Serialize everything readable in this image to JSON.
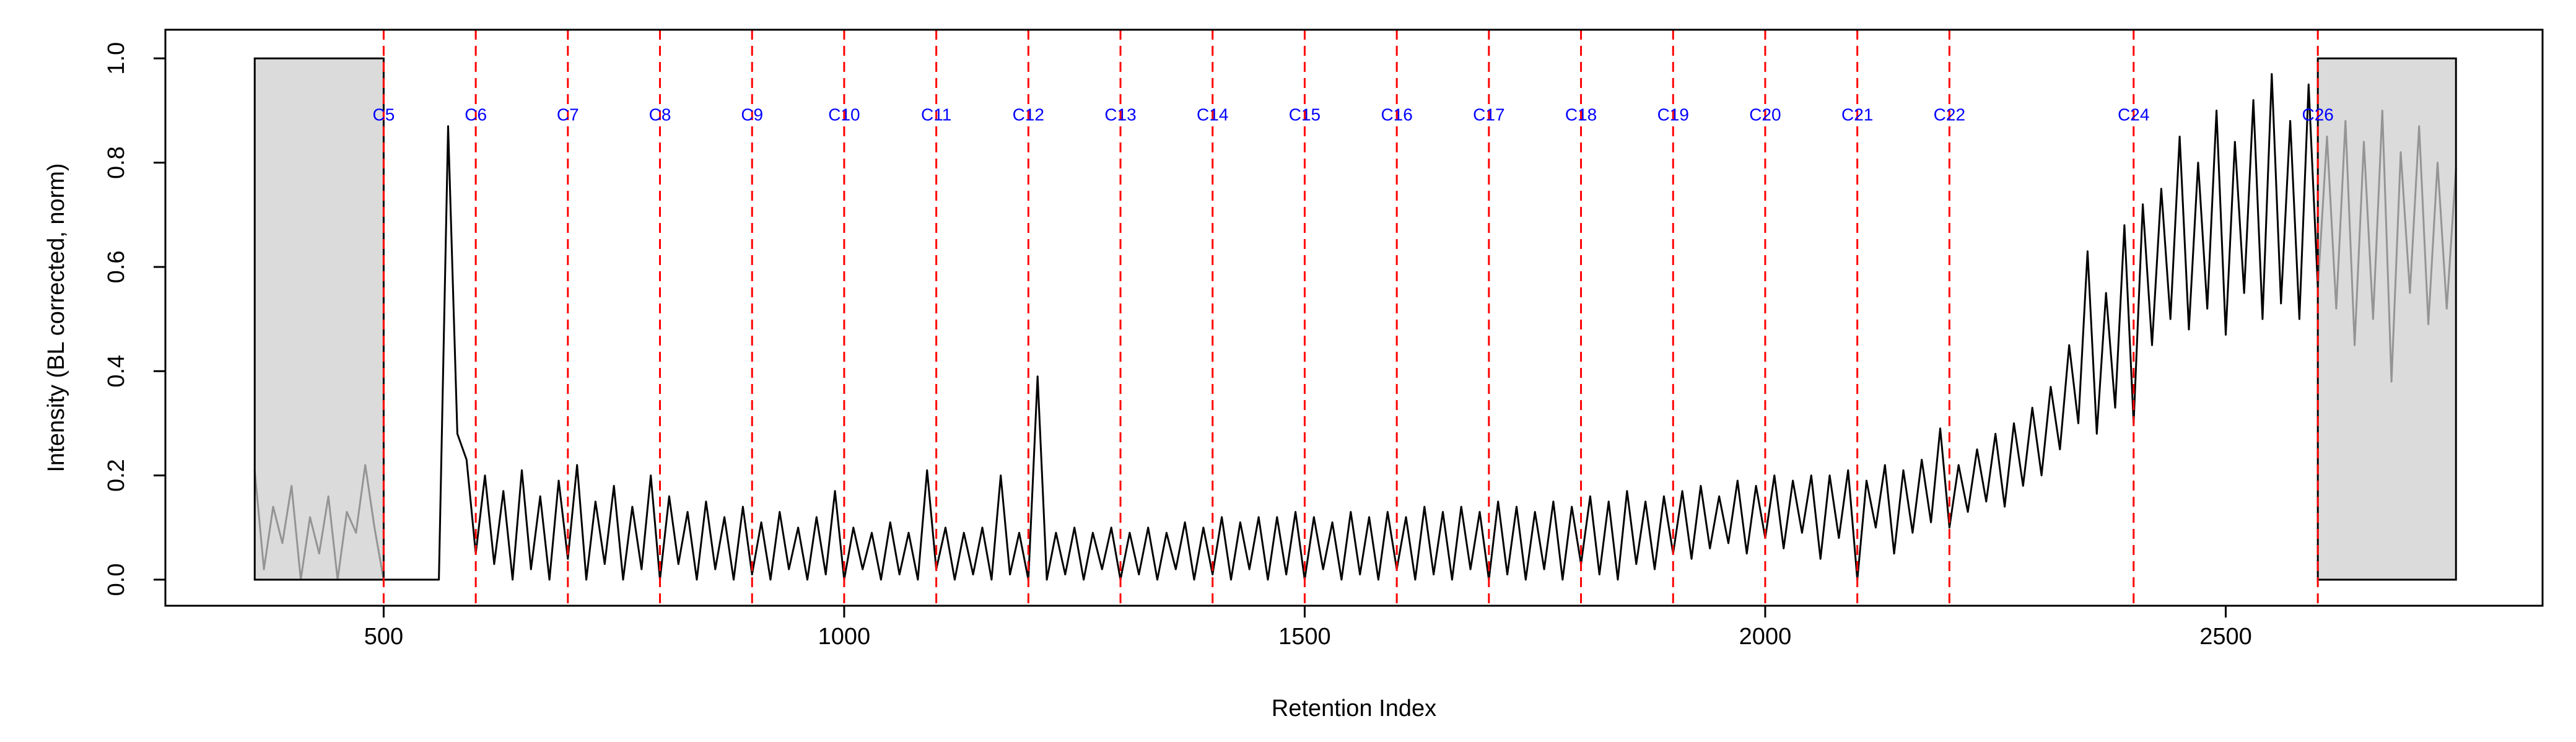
{
  "chart_data": {
    "type": "line",
    "x_label": "Retention Index",
    "y_label": "Intensity (BL corrected, norm)",
    "color": "#000000",
    "xlim": [
      263,
      2844
    ],
    "ylim": [
      -0.05,
      1.055
    ],
    "xticks": [
      500,
      1000,
      1500,
      2000,
      2500
    ],
    "yticks": [
      {
        "value": 0,
        "label": "0.0"
      },
      {
        "value": 0.2,
        "label": "0.2"
      },
      {
        "value": 0.4,
        "label": "0.4"
      },
      {
        "value": 0.6,
        "label": "0.6"
      },
      {
        "value": 0.8,
        "label": "0.8"
      },
      {
        "value": 1,
        "label": "1.0"
      }
    ],
    "shaded_regions": [
      {
        "xmin": 360,
        "xmax": 500,
        "ymin": 0,
        "ymax": 1
      },
      {
        "xmin": 2600,
        "xmax": 2750,
        "ymin": 0,
        "ymax": 1
      }
    ],
    "markers": [
      {
        "x": 500,
        "label": "C5"
      },
      {
        "x": 600,
        "label": "C6"
      },
      {
        "x": 700,
        "label": "C7"
      },
      {
        "x": 800,
        "label": "C8"
      },
      {
        "x": 900,
        "label": "C9"
      },
      {
        "x": 1000,
        "label": "C10"
      },
      {
        "x": 1100,
        "label": "C11"
      },
      {
        "x": 1200,
        "label": "C12"
      },
      {
        "x": 1300,
        "label": "C13"
      },
      {
        "x": 1400,
        "label": "C14"
      },
      {
        "x": 1500,
        "label": "C15"
      },
      {
        "x": 1600,
        "label": "C16"
      },
      {
        "x": 1700,
        "label": "C17"
      },
      {
        "x": 1800,
        "label": "C18"
      },
      {
        "x": 1900,
        "label": "C19"
      },
      {
        "x": 2000,
        "label": "C20"
      },
      {
        "x": 2100,
        "label": "C21"
      },
      {
        "x": 2200,
        "label": "C22"
      },
      {
        "x": 2400,
        "label": "C24"
      },
      {
        "x": 2600,
        "label": "C26"
      }
    ],
    "x": [
      360,
      370,
      380,
      390,
      400,
      410,
      420,
      430,
      440,
      450,
      460,
      470,
      480,
      490,
      500,
      510,
      520,
      530,
      540,
      550,
      560,
      570,
      580,
      590,
      600,
      610,
      620,
      630,
      640,
      650,
      660,
      670,
      680,
      690,
      700,
      710,
      720,
      730,
      740,
      750,
      760,
      770,
      780,
      790,
      800,
      810,
      820,
      830,
      840,
      850,
      860,
      870,
      880,
      890,
      900,
      910,
      920,
      930,
      940,
      950,
      960,
      970,
      980,
      990,
      1000,
      1010,
      1020,
      1030,
      1040,
      1050,
      1060,
      1070,
      1080,
      1090,
      1100,
      1110,
      1120,
      1130,
      1140,
      1150,
      1160,
      1170,
      1180,
      1190,
      1200,
      1210,
      1220,
      1230,
      1240,
      1250,
      1260,
      1270,
      1280,
      1290,
      1300,
      1310,
      1320,
      1330,
      1340,
      1350,
      1360,
      1370,
      1380,
      1390,
      1400,
      1410,
      1420,
      1430,
      1440,
      1450,
      1460,
      1470,
      1480,
      1490,
      1500,
      1510,
      1520,
      1530,
      1540,
      1550,
      1560,
      1570,
      1580,
      1590,
      1600,
      1610,
      1620,
      1630,
      1640,
      1650,
      1660,
      1670,
      1680,
      1690,
      1700,
      1710,
      1720,
      1730,
      1740,
      1750,
      1760,
      1770,
      1780,
      1790,
      1800,
      1810,
      1820,
      1830,
      1840,
      1850,
      1860,
      1870,
      1880,
      1890,
      1900,
      1910,
      1920,
      1930,
      1940,
      1950,
      1960,
      1970,
      1980,
      1990,
      2000,
      2010,
      2020,
      2030,
      2040,
      2050,
      2060,
      2070,
      2080,
      2090,
      2100,
      2110,
      2120,
      2130,
      2140,
      2150,
      2160,
      2170,
      2180,
      2190,
      2200,
      2210,
      2220,
      2230,
      2240,
      2250,
      2260,
      2270,
      2280,
      2290,
      2300,
      2310,
      2320,
      2330,
      2340,
      2350,
      2360,
      2370,
      2380,
      2390,
      2400,
      2410,
      2420,
      2430,
      2440,
      2450,
      2460,
      2470,
      2480,
      2490,
      2500,
      2510,
      2520,
      2530,
      2540,
      2550,
      2560,
      2570,
      2580,
      2590,
      2600,
      2610,
      2620,
      2630,
      2640,
      2650,
      2660,
      2670,
      2680,
      2690,
      2700,
      2710,
      2720,
      2730,
      2740,
      2750
    ],
    "values": [
      0.21,
      0.02,
      0.14,
      0.07,
      0.18,
      0.0,
      0.12,
      0.05,
      0.16,
      0.0,
      0.13,
      0.09,
      0.22,
      0.1,
      0.0,
      0.0,
      0.0,
      0.0,
      0.0,
      0.0,
      0.0,
      0.87,
      0.28,
      0.23,
      0.05,
      0.2,
      0.03,
      0.17,
      0.0,
      0.21,
      0.02,
      0.16,
      0.0,
      0.19,
      0.04,
      0.22,
      0.0,
      0.15,
      0.03,
      0.18,
      0.0,
      0.14,
      0.02,
      0.2,
      0.0,
      0.16,
      0.03,
      0.13,
      0.0,
      0.15,
      0.02,
      0.12,
      0.0,
      0.14,
      0.01,
      0.11,
      0.0,
      0.13,
      0.02,
      0.1,
      0.0,
      0.12,
      0.01,
      0.17,
      0.0,
      0.1,
      0.02,
      0.09,
      0.0,
      0.11,
      0.01,
      0.09,
      0.0,
      0.21,
      0.02,
      0.1,
      0.0,
      0.09,
      0.01,
      0.1,
      0.0,
      0.2,
      0.01,
      0.09,
      0.0,
      0.39,
      0.0,
      0.09,
      0.01,
      0.1,
      0.0,
      0.09,
      0.02,
      0.1,
      0.0,
      0.09,
      0.01,
      0.1,
      0.0,
      0.09,
      0.02,
      0.11,
      0.0,
      0.1,
      0.01,
      0.12,
      0.0,
      0.11,
      0.02,
      0.12,
      0.0,
      0.12,
      0.01,
      0.13,
      0.0,
      0.12,
      0.02,
      0.11,
      0.0,
      0.13,
      0.01,
      0.12,
      0.0,
      0.13,
      0.02,
      0.12,
      0.0,
      0.14,
      0.01,
      0.13,
      0.0,
      0.14,
      0.02,
      0.13,
      0.0,
      0.15,
      0.01,
      0.14,
      0.0,
      0.13,
      0.02,
      0.15,
      0.0,
      0.14,
      0.03,
      0.16,
      0.01,
      0.15,
      0.0,
      0.17,
      0.03,
      0.15,
      0.02,
      0.16,
      0.05,
      0.17,
      0.04,
      0.18,
      0.06,
      0.16,
      0.07,
      0.19,
      0.05,
      0.18,
      0.08,
      0.2,
      0.06,
      0.19,
      0.09,
      0.2,
      0.04,
      0.2,
      0.08,
      0.21,
      0.0,
      0.19,
      0.1,
      0.22,
      0.05,
      0.21,
      0.09,
      0.23,
      0.11,
      0.29,
      0.1,
      0.22,
      0.13,
      0.25,
      0.15,
      0.28,
      0.14,
      0.3,
      0.18,
      0.33,
      0.2,
      0.37,
      0.25,
      0.45,
      0.3,
      0.63,
      0.28,
      0.55,
      0.33,
      0.68,
      0.3,
      0.72,
      0.45,
      0.75,
      0.5,
      0.85,
      0.48,
      0.8,
      0.52,
      0.9,
      0.47,
      0.84,
      0.55,
      0.92,
      0.5,
      0.97,
      0.53,
      0.88,
      0.5,
      0.95,
      0.56,
      0.85,
      0.52,
      0.88,
      0.45,
      0.84,
      0.5,
      0.9,
      0.38,
      0.82,
      0.55,
      0.87,
      0.49,
      0.8,
      0.52,
      0.79
    ]
  }
}
